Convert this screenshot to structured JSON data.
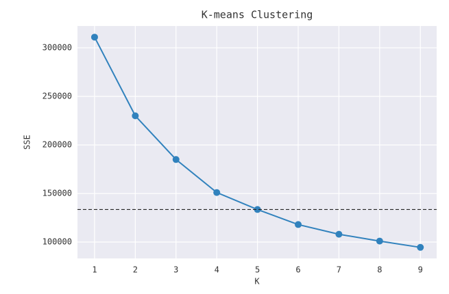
{
  "chart_data": {
    "type": "line",
    "title": "K-means Clustering",
    "x_label": "K",
    "y_label": "SSE",
    "x": [
      1,
      2,
      3,
      4,
      5,
      6,
      7,
      8,
      9
    ],
    "series": [
      {
        "color": "#3182bd",
        "values": [
          311000,
          230000,
          185000,
          151000,
          133500,
          118000,
          108000,
          101000,
          94500
        ]
      }
    ],
    "hline": 133500,
    "hline_color": "#222222",
    "xlim": [
      0.58,
      9.4
    ],
    "xticks": [
      1,
      2,
      3,
      4,
      5,
      6,
      7,
      8,
      9
    ],
    "ylim": [
      83100,
      322500
    ],
    "yticks": [
      100000,
      150000,
      200000,
      250000,
      300000
    ],
    "grid": true
  }
}
